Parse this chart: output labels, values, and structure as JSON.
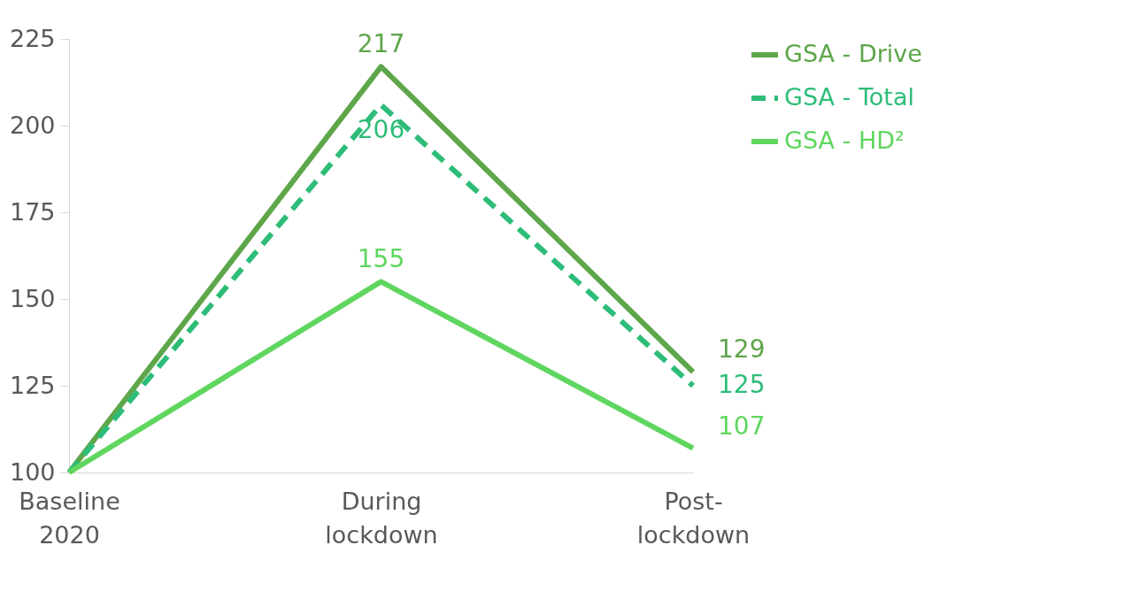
{
  "chart_data": {
    "type": "line",
    "categories": [
      "Baseline 2020",
      "During lockdown",
      "Post-lockdown"
    ],
    "series": [
      {
        "name": "GSA - Drive",
        "color": "#5ea64a",
        "line_style": "solid",
        "values": [
          100,
          217,
          129
        ],
        "value_labels": [
          null,
          "217",
          "129"
        ]
      },
      {
        "name": "GSA - Total",
        "color": "#2dbd78",
        "line_style": "dashed",
        "values": [
          100,
          206,
          125
        ],
        "value_labels": [
          null,
          "206",
          "125"
        ]
      },
      {
        "name": "GSA - HD²",
        "color": "#5fd65f",
        "line_style": "solid",
        "values": [
          100,
          155,
          107
        ],
        "value_labels": [
          null,
          "155",
          "107"
        ]
      }
    ],
    "ylim": [
      100,
      225
    ],
    "yticks": [
      100,
      125,
      150,
      175,
      200,
      225
    ],
    "grid": false,
    "legend": "right",
    "marker": "none"
  }
}
